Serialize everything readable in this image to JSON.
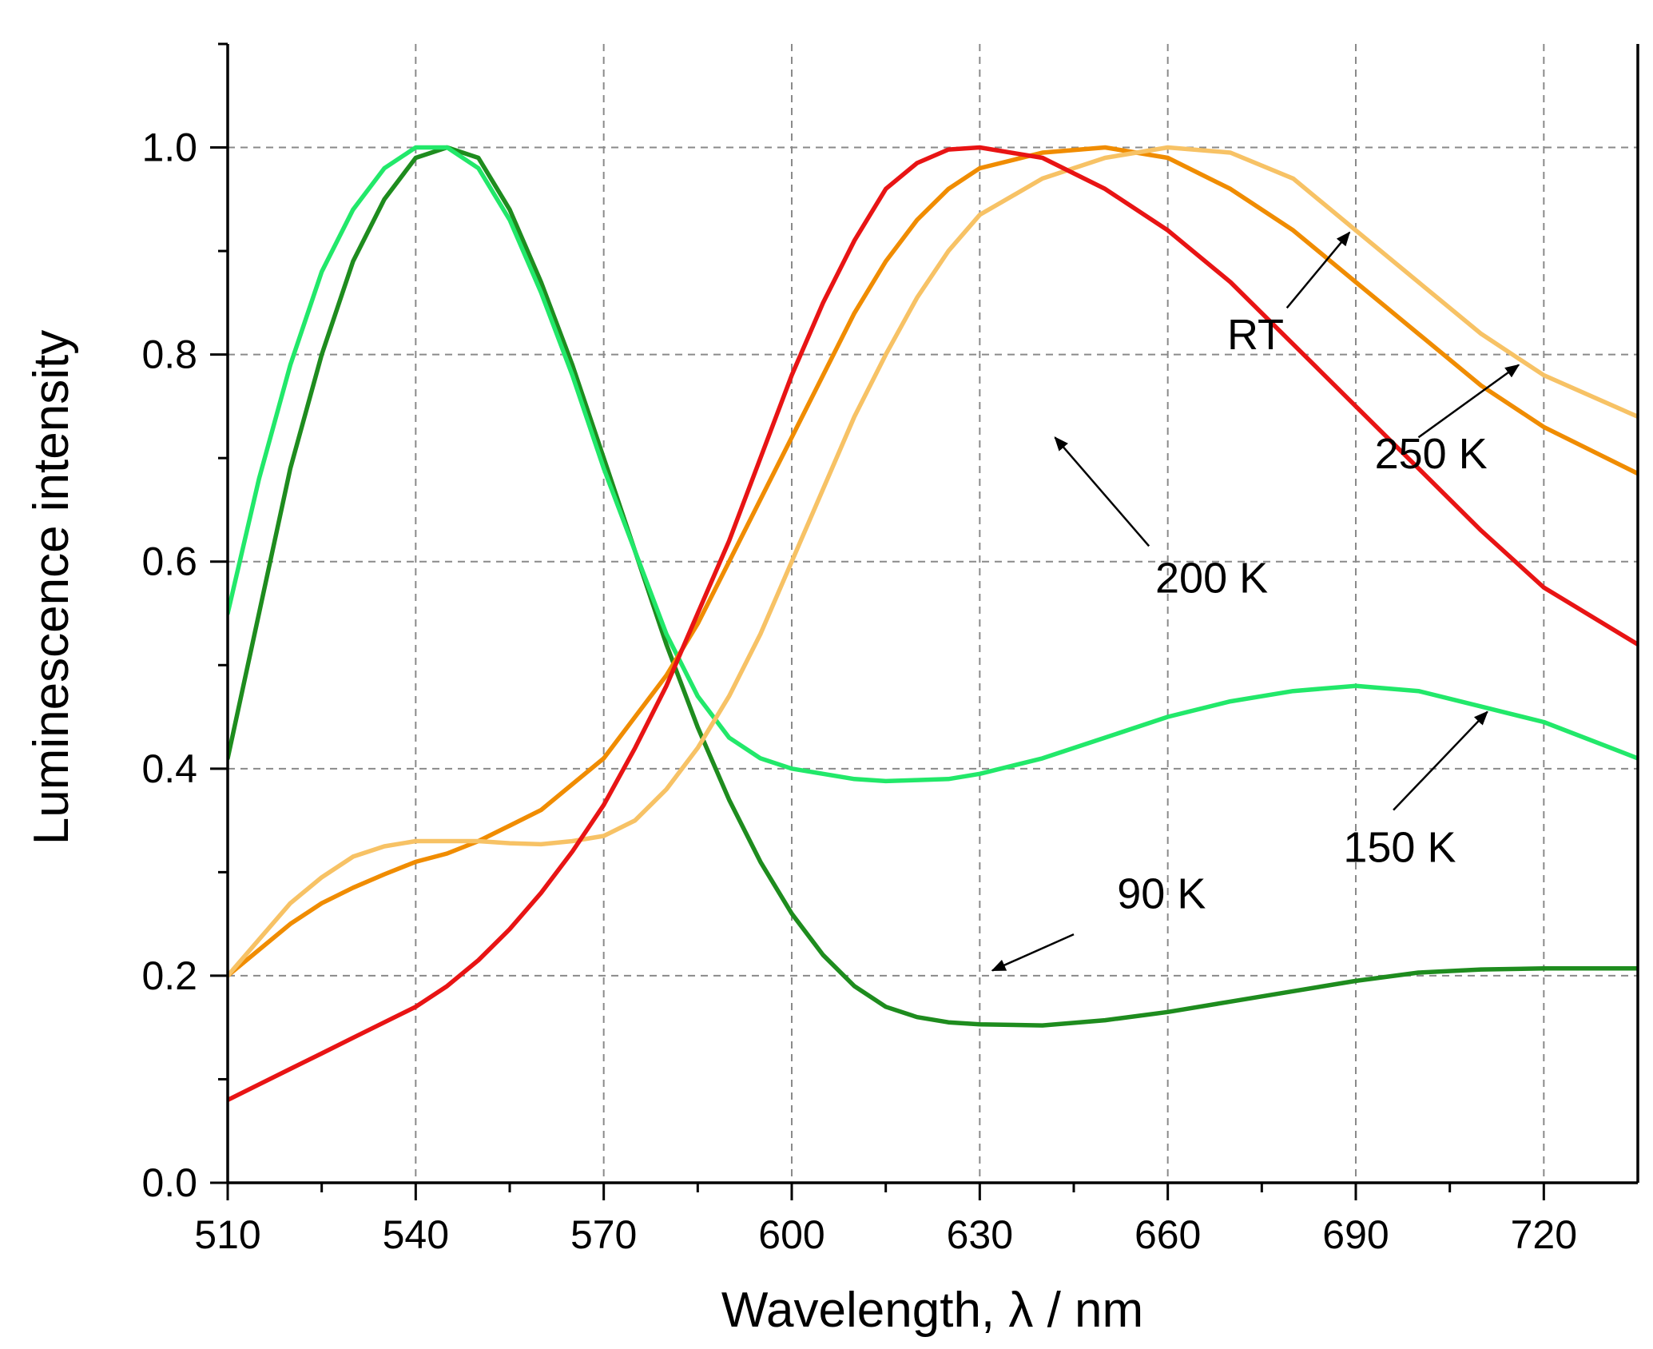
{
  "chart_data": {
    "type": "line",
    "title": "",
    "xlabel": "Wavelength, λ / nm",
    "ylabel": "Luminescence intensity",
    "xlim": [
      510,
      735
    ],
    "ylim": [
      0,
      1.1
    ],
    "x_ticks": [
      510,
      540,
      570,
      600,
      630,
      660,
      690,
      720
    ],
    "x_tick_labels": [
      "510",
      "540",
      "570",
      "600",
      "630",
      "660",
      "690",
      "720"
    ],
    "y_ticks": [
      0,
      0.2,
      0.4,
      0.6,
      0.8,
      1.0
    ],
    "y_tick_labels": [
      "0.0",
      "0.2",
      "0.4",
      "0.6",
      "0.8",
      "1.0"
    ],
    "grid": true,
    "series": [
      {
        "name": "90 K",
        "color": "#1e8c1e",
        "points": [
          [
            510,
            0.41
          ],
          [
            515,
            0.55
          ],
          [
            520,
            0.69
          ],
          [
            525,
            0.8
          ],
          [
            530,
            0.89
          ],
          [
            535,
            0.95
          ],
          [
            540,
            0.99
          ],
          [
            545,
            1.0
          ],
          [
            550,
            0.99
          ],
          [
            555,
            0.94
          ],
          [
            560,
            0.87
          ],
          [
            565,
            0.79
          ],
          [
            570,
            0.7
          ],
          [
            575,
            0.61
          ],
          [
            580,
            0.52
          ],
          [
            585,
            0.44
          ],
          [
            590,
            0.37
          ],
          [
            595,
            0.31
          ],
          [
            600,
            0.26
          ],
          [
            605,
            0.22
          ],
          [
            610,
            0.19
          ],
          [
            615,
            0.17
          ],
          [
            620,
            0.16
          ],
          [
            625,
            0.155
          ],
          [
            630,
            0.153
          ],
          [
            640,
            0.152
          ],
          [
            650,
            0.157
          ],
          [
            660,
            0.165
          ],
          [
            670,
            0.175
          ],
          [
            680,
            0.185
          ],
          [
            690,
            0.195
          ],
          [
            700,
            0.203
          ],
          [
            710,
            0.206
          ],
          [
            720,
            0.207
          ],
          [
            735,
            0.207
          ]
        ]
      },
      {
        "name": "150 K",
        "color": "#22e86a",
        "points": [
          [
            510,
            0.55
          ],
          [
            515,
            0.68
          ],
          [
            520,
            0.79
          ],
          [
            525,
            0.88
          ],
          [
            530,
            0.94
          ],
          [
            535,
            0.98
          ],
          [
            540,
            1.0
          ],
          [
            545,
            1.0
          ],
          [
            550,
            0.98
          ],
          [
            555,
            0.93
          ],
          [
            560,
            0.86
          ],
          [
            565,
            0.78
          ],
          [
            570,
            0.69
          ],
          [
            575,
            0.61
          ],
          [
            580,
            0.53
          ],
          [
            585,
            0.47
          ],
          [
            590,
            0.43
          ],
          [
            595,
            0.41
          ],
          [
            600,
            0.4
          ],
          [
            605,
            0.395
          ],
          [
            610,
            0.39
          ],
          [
            615,
            0.388
          ],
          [
            620,
            0.389
          ],
          [
            625,
            0.39
          ],
          [
            630,
            0.395
          ],
          [
            640,
            0.41
          ],
          [
            650,
            0.43
          ],
          [
            660,
            0.45
          ],
          [
            670,
            0.465
          ],
          [
            680,
            0.475
          ],
          [
            690,
            0.48
          ],
          [
            700,
            0.475
          ],
          [
            710,
            0.46
          ],
          [
            720,
            0.445
          ],
          [
            735,
            0.41
          ]
        ]
      },
      {
        "name": "200 K",
        "color": "#f08c00",
        "points": [
          [
            510,
            0.2
          ],
          [
            515,
            0.225
          ],
          [
            520,
            0.25
          ],
          [
            525,
            0.27
          ],
          [
            530,
            0.285
          ],
          [
            535,
            0.298
          ],
          [
            540,
            0.31
          ],
          [
            545,
            0.318
          ],
          [
            550,
            0.33
          ],
          [
            555,
            0.345
          ],
          [
            560,
            0.36
          ],
          [
            565,
            0.385
          ],
          [
            570,
            0.41
          ],
          [
            575,
            0.45
          ],
          [
            580,
            0.49
          ],
          [
            585,
            0.54
          ],
          [
            590,
            0.6
          ],
          [
            595,
            0.66
          ],
          [
            600,
            0.72
          ],
          [
            605,
            0.78
          ],
          [
            610,
            0.84
          ],
          [
            615,
            0.89
          ],
          [
            620,
            0.93
          ],
          [
            625,
            0.96
          ],
          [
            630,
            0.98
          ],
          [
            640,
            0.995
          ],
          [
            650,
            1.0
          ],
          [
            660,
            0.99
          ],
          [
            670,
            0.96
          ],
          [
            680,
            0.92
          ],
          [
            690,
            0.87
          ],
          [
            700,
            0.82
          ],
          [
            710,
            0.77
          ],
          [
            720,
            0.73
          ],
          [
            735,
            0.685
          ]
        ]
      },
      {
        "name": "250 K",
        "color": "#f7c265",
        "points": [
          [
            510,
            0.2
          ],
          [
            515,
            0.235
          ],
          [
            520,
            0.27
          ],
          [
            525,
            0.295
          ],
          [
            530,
            0.315
          ],
          [
            535,
            0.325
          ],
          [
            540,
            0.33
          ],
          [
            545,
            0.33
          ],
          [
            550,
            0.33
          ],
          [
            555,
            0.328
          ],
          [
            560,
            0.327
          ],
          [
            565,
            0.33
          ],
          [
            570,
            0.335
          ],
          [
            575,
            0.35
          ],
          [
            580,
            0.38
          ],
          [
            585,
            0.42
          ],
          [
            590,
            0.47
          ],
          [
            595,
            0.53
          ],
          [
            600,
            0.6
          ],
          [
            605,
            0.67
          ],
          [
            610,
            0.74
          ],
          [
            615,
            0.8
          ],
          [
            620,
            0.855
          ],
          [
            625,
            0.9
          ],
          [
            630,
            0.935
          ],
          [
            640,
            0.97
          ],
          [
            650,
            0.99
          ],
          [
            660,
            1.0
          ],
          [
            670,
            0.995
          ],
          [
            680,
            0.97
          ],
          [
            690,
            0.92
          ],
          [
            700,
            0.87
          ],
          [
            710,
            0.82
          ],
          [
            720,
            0.78
          ],
          [
            735,
            0.74
          ]
        ]
      },
      {
        "name": "RT",
        "color": "#e81414",
        "points": [
          [
            510,
            0.08
          ],
          [
            515,
            0.095
          ],
          [
            520,
            0.11
          ],
          [
            525,
            0.125
          ],
          [
            530,
            0.14
          ],
          [
            535,
            0.155
          ],
          [
            540,
            0.17
          ],
          [
            545,
            0.19
          ],
          [
            550,
            0.215
          ],
          [
            555,
            0.245
          ],
          [
            560,
            0.28
          ],
          [
            565,
            0.32
          ],
          [
            570,
            0.365
          ],
          [
            575,
            0.42
          ],
          [
            580,
            0.48
          ],
          [
            585,
            0.55
          ],
          [
            590,
            0.62
          ],
          [
            595,
            0.7
          ],
          [
            600,
            0.78
          ],
          [
            605,
            0.85
          ],
          [
            610,
            0.91
          ],
          [
            615,
            0.96
          ],
          [
            620,
            0.985
          ],
          [
            625,
            0.998
          ],
          [
            630,
            1.0
          ],
          [
            640,
            0.99
          ],
          [
            650,
            0.96
          ],
          [
            660,
            0.92
          ],
          [
            670,
            0.87
          ],
          [
            680,
            0.81
          ],
          [
            690,
            0.75
          ],
          [
            700,
            0.69
          ],
          [
            710,
            0.63
          ],
          [
            720,
            0.575
          ],
          [
            735,
            0.52
          ]
        ]
      }
    ],
    "annotations": [
      {
        "name": "RT",
        "text": "RT",
        "text_x": 674,
        "text_y": 0.805,
        "arrow_from": [
          679,
          0.845
        ],
        "arrow_to": [
          689,
          0.918
        ]
      },
      {
        "name": "250 K",
        "text": "250 K",
        "text_x": 702,
        "text_y": 0.69,
        "arrow_from": [
          700,
          0.72
        ],
        "arrow_to": [
          716,
          0.79
        ]
      },
      {
        "name": "200 K",
        "text": "200 K",
        "text_x": 667,
        "text_y": 0.57,
        "arrow_from": [
          657,
          0.615
        ],
        "arrow_to": [
          642,
          0.72
        ]
      },
      {
        "name": "150 K",
        "text": "150 K",
        "text_x": 697,
        "text_y": 0.31,
        "arrow_from": [
          696,
          0.36
        ],
        "arrow_to": [
          711,
          0.455
        ]
      },
      {
        "name": "90 K",
        "text": "90 K",
        "text_x": 659,
        "text_y": 0.265,
        "arrow_from": [
          645,
          0.24
        ],
        "arrow_to": [
          632,
          0.205
        ]
      }
    ]
  }
}
